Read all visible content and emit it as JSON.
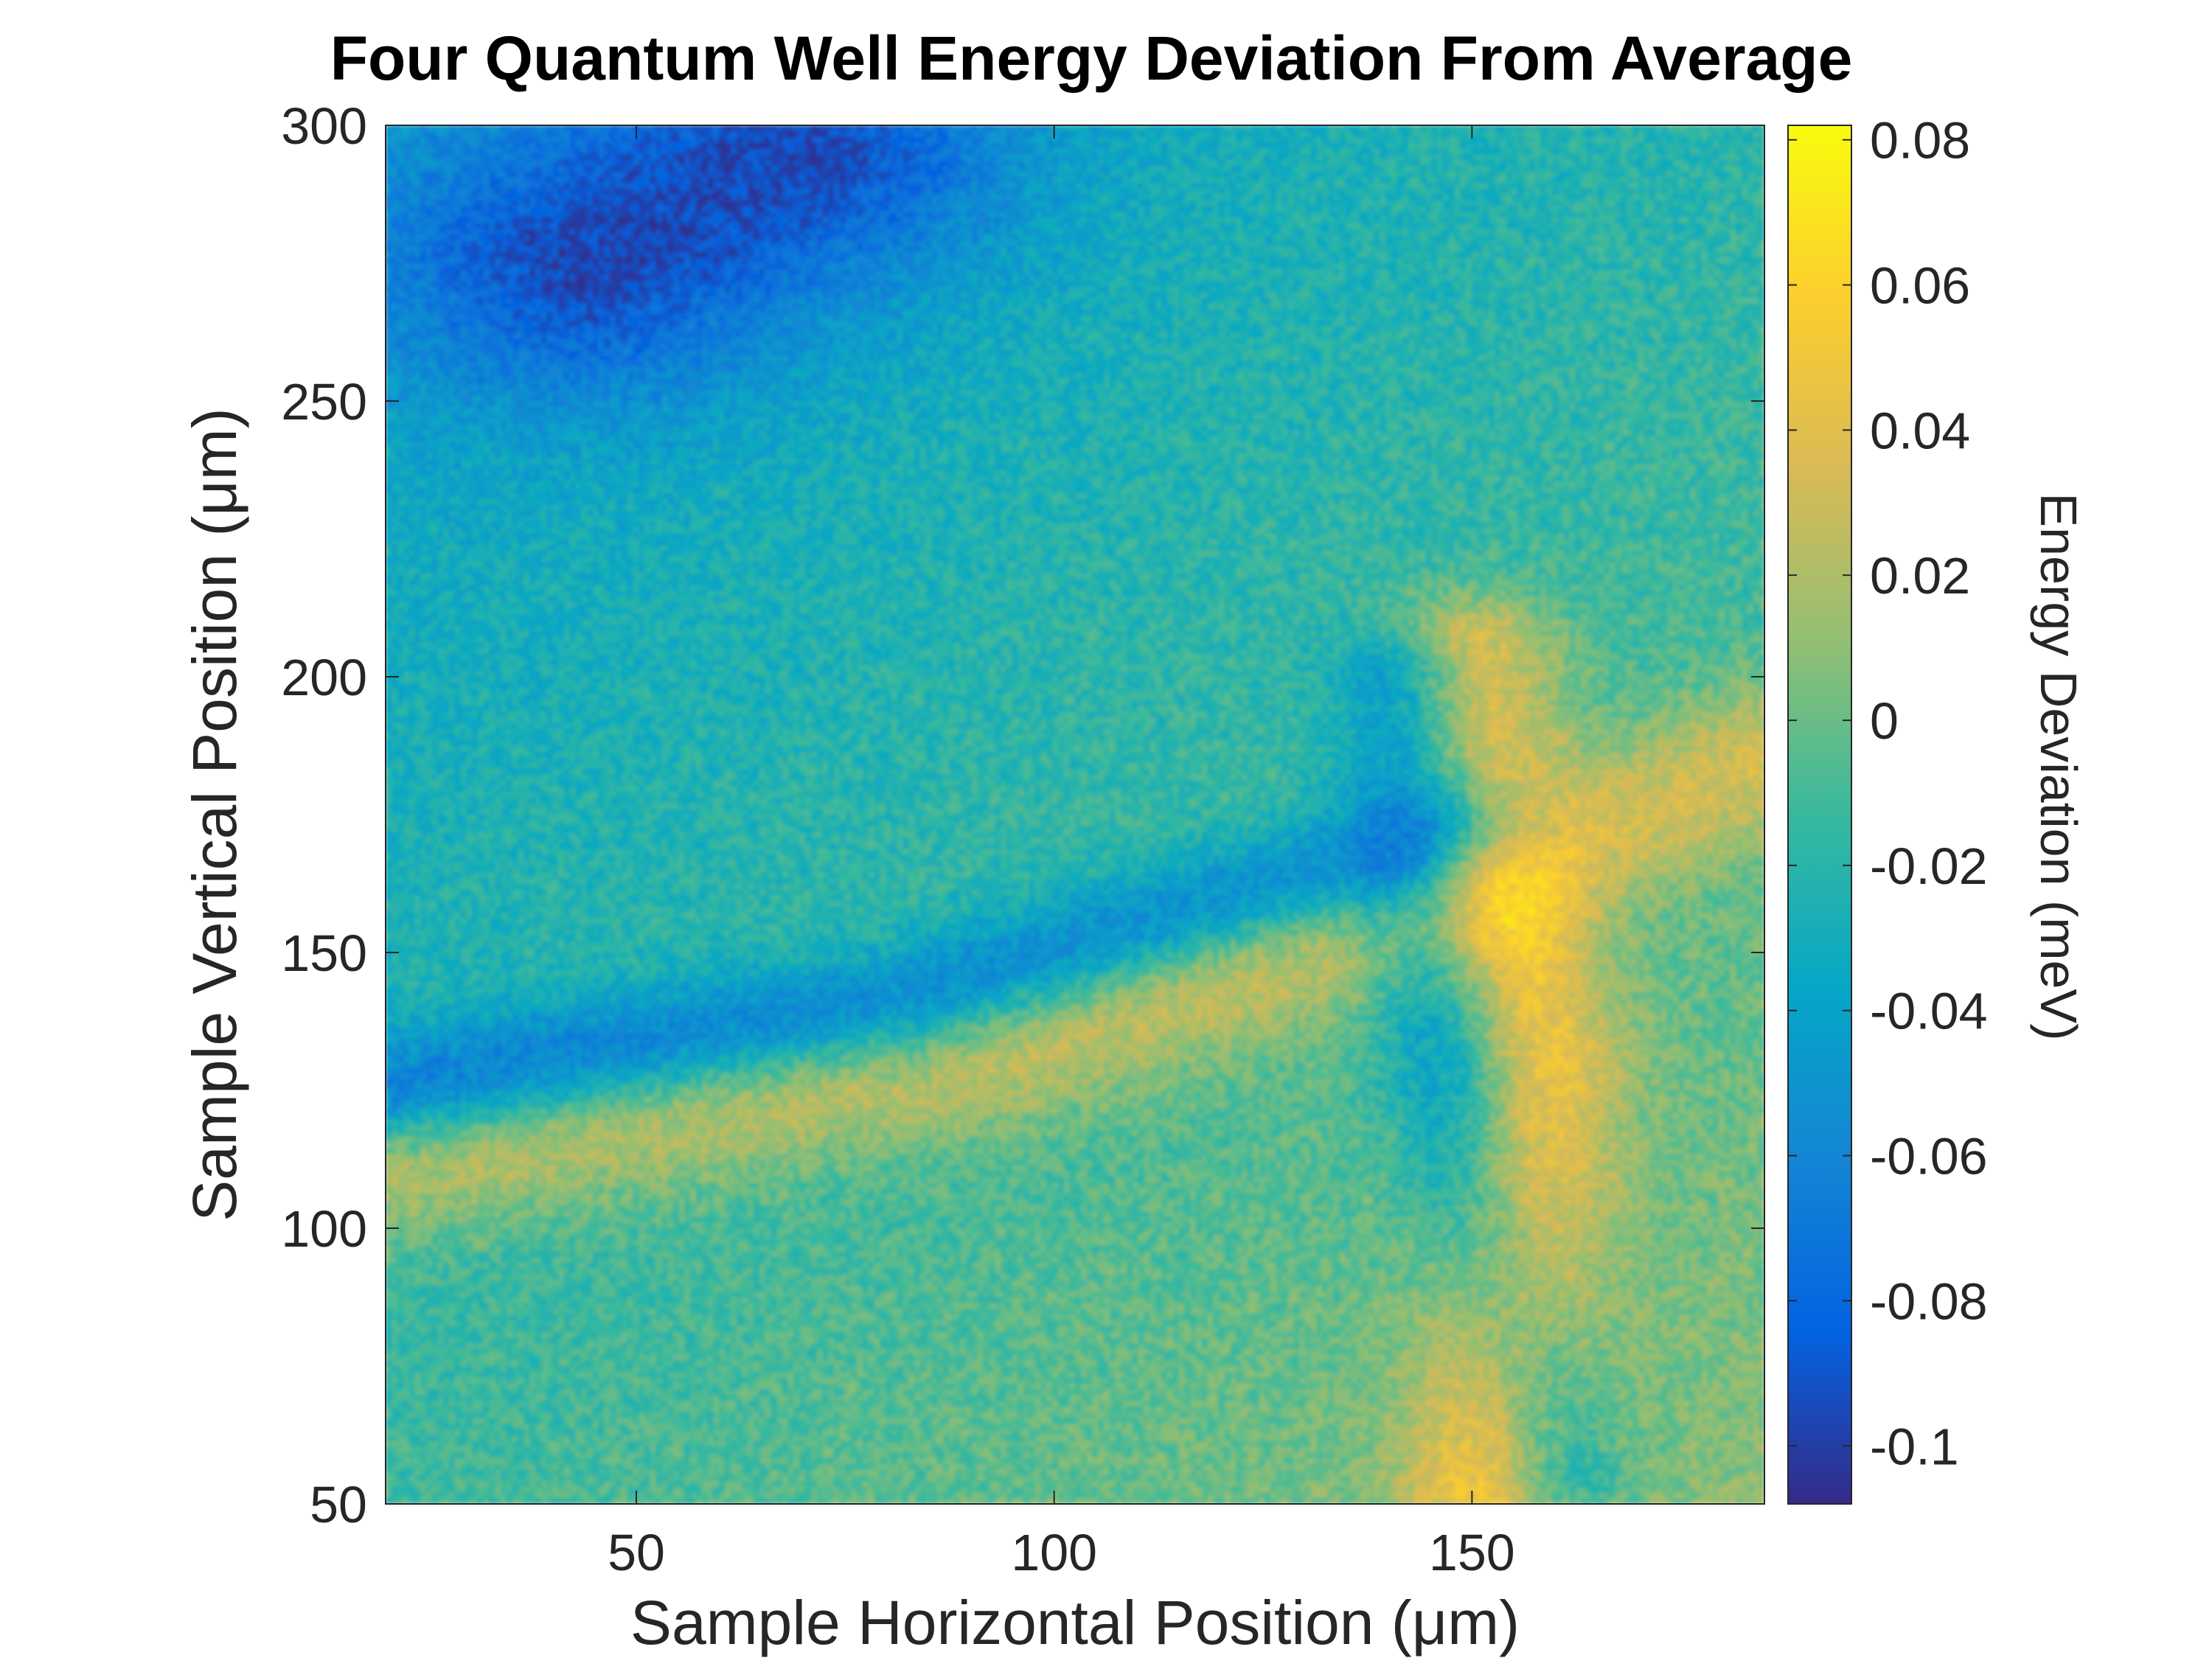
{
  "chart_data": {
    "type": "heatmap",
    "title": "Four Quantum Well Energy Deviation From Average",
    "xlabel": "Sample Horizontal Position (μm)",
    "ylabel": "Sample Vertical Position (μm)",
    "xlim": [
      20,
      185
    ],
    "ylim": [
      50,
      300
    ],
    "xticks": [
      50,
      100,
      150
    ],
    "xtick_labels": [
      "50",
      "100",
      "150"
    ],
    "yticks": [
      50,
      100,
      150,
      200,
      250,
      300
    ],
    "ytick_labels": [
      "50",
      "100",
      "150",
      "200",
      "250",
      "300"
    ],
    "colorbar": {
      "label": "Energy Deviation (meV)",
      "lim": [
        -0.108,
        0.082
      ],
      "ticks": [
        0.08,
        0.06,
        0.04,
        0.02,
        0,
        -0.02,
        -0.04,
        -0.06,
        -0.08,
        -0.1
      ],
      "tick_labels": [
        "0.08",
        "0.06",
        "0.04",
        "0.02",
        "0",
        "-0.02",
        "-0.04",
        "-0.06",
        "-0.08",
        "-0.1"
      ],
      "colormap": "parula",
      "colors": [
        "#352a87",
        "#0363e1",
        "#1485d4",
        "#06a7c6",
        "#38b99e",
        "#92bf73",
        "#d9ba56",
        "#fcce2e",
        "#f9fb0e"
      ]
    },
    "features": [
      {
        "name": "high-energy crossing band",
        "value": 0.055,
        "points": [
          [
            152,
            52
          ],
          [
            158,
            130
          ],
          [
            152,
            170
          ],
          [
            150,
            205
          ]
        ]
      },
      {
        "name": "high-energy oblique band",
        "value": 0.04,
        "points": [
          [
            20,
            110
          ],
          [
            90,
            130
          ],
          [
            140,
            155
          ],
          [
            185,
            185
          ]
        ]
      },
      {
        "name": "low-energy oblique band",
        "value": -0.05,
        "points": [
          [
            20,
            125
          ],
          [
            80,
            140
          ],
          [
            145,
            170
          ],
          [
            150,
            172
          ]
        ]
      },
      {
        "name": "low-energy vertical band",
        "value": -0.045,
        "points": [
          [
            142,
            200
          ],
          [
            145,
            150
          ],
          [
            150,
            110
          ],
          [
            160,
            55
          ]
        ]
      },
      {
        "name": "low-energy upper-left region",
        "value": -0.06,
        "points": [
          [
            45,
            275
          ],
          [
            70,
            295
          ]
        ]
      }
    ]
  }
}
